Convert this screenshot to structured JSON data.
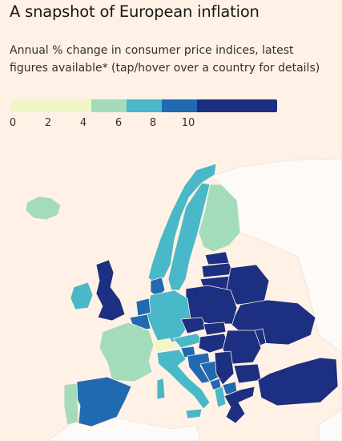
{
  "title": "A snapshot of European inflation",
  "subtitle": "Annual % change in consumer price indices, latest figures available* (tap/hover over a country for details)",
  "legend": {
    "bins": [
      {
        "from": 0,
        "to": 4,
        "color": "#f2f5c5"
      },
      {
        "from": 4,
        "to": 6,
        "color": "#a3dbbb"
      },
      {
        "from": 6,
        "to": 8,
        "color": "#49b8c8"
      },
      {
        "from": 8,
        "to": 10,
        "color": "#2169b0"
      },
      {
        "from": 10,
        "to": 12,
        "color": "#1c2f80"
      }
    ],
    "ticks": [
      "0",
      "2",
      "4",
      "6",
      "8",
      "10"
    ]
  },
  "map": {
    "countries": [
      {
        "id": "iceland",
        "band": 1
      },
      {
        "id": "norway",
        "band": 2
      },
      {
        "id": "sweden",
        "band": 2
      },
      {
        "id": "finland",
        "band": 1
      },
      {
        "id": "uk",
        "band": 4
      },
      {
        "id": "ireland",
        "band": 2
      },
      {
        "id": "france",
        "band": 1
      },
      {
        "id": "spain",
        "band": 3
      },
      {
        "id": "portugal",
        "band": 1
      },
      {
        "id": "belgium",
        "band": 3
      },
      {
        "id": "netherlands",
        "band": 3
      },
      {
        "id": "denmark",
        "band": 3
      },
      {
        "id": "germany",
        "band": 2
      },
      {
        "id": "switzerland",
        "band": 0
      },
      {
        "id": "austria",
        "band": 2
      },
      {
        "id": "italy",
        "band": 2
      },
      {
        "id": "poland",
        "band": 4
      },
      {
        "id": "czechia",
        "band": 4
      },
      {
        "id": "slovakia",
        "band": 4
      },
      {
        "id": "hungary",
        "band": 4
      },
      {
        "id": "slovenia",
        "band": 3
      },
      {
        "id": "croatia",
        "band": 3
      },
      {
        "id": "bosnia",
        "band": 3
      },
      {
        "id": "serbia",
        "band": 4
      },
      {
        "id": "montenegro",
        "band": 3
      },
      {
        "id": "albania",
        "band": 2
      },
      {
        "id": "north-macedonia",
        "band": 3
      },
      {
        "id": "greece",
        "band": 4
      },
      {
        "id": "bulgaria",
        "band": 4
      },
      {
        "id": "romania",
        "band": 4
      },
      {
        "id": "moldova",
        "band": 4
      },
      {
        "id": "ukraine",
        "band": 4
      },
      {
        "id": "belarus",
        "band": 4
      },
      {
        "id": "lithuania",
        "band": 4
      },
      {
        "id": "latvia",
        "band": 4
      },
      {
        "id": "estonia",
        "band": 4
      },
      {
        "id": "turkey",
        "band": 4
      }
    ]
  }
}
